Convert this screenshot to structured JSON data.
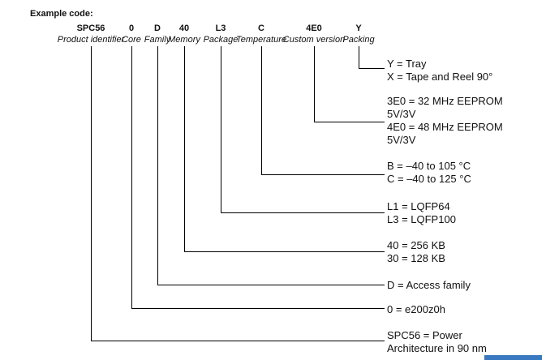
{
  "page": {
    "title": "Example code:"
  },
  "columns": [
    {
      "code": "SPC56",
      "label": "Product identifier"
    },
    {
      "code": "0",
      "label": "Core"
    },
    {
      "code": "D",
      "label": "Family"
    },
    {
      "code": "40",
      "label": "Memory"
    },
    {
      "code": "L3",
      "label": "Package"
    },
    {
      "code": "C",
      "label": "Temperature"
    },
    {
      "code": "4E0",
      "label": "Custom version"
    },
    {
      "code": "Y",
      "label": "Packing"
    }
  ],
  "legend": [
    {
      "for": "Product identifier",
      "lines": [
        "SPC56 = Power",
        "Architecture in 90 nm"
      ]
    },
    {
      "for": "Core",
      "lines": [
        "0 = e200z0h"
      ]
    },
    {
      "for": "Family",
      "lines": [
        "D = Access family"
      ]
    },
    {
      "for": "Memory",
      "lines": [
        "40 = 256 KB",
        "30 = 128 KB"
      ]
    },
    {
      "for": "Package",
      "lines": [
        "L1 = LQFP64",
        "L3 = LQFP100"
      ]
    },
    {
      "for": "Temperature",
      "lines": [
        "B = –40 to 105 °C",
        "C = –40 to 125 °C"
      ]
    },
    {
      "for": "Custom version",
      "lines": [
        "3E0 = 32 MHz EEPROM",
        "5V/3V",
        "4E0 = 48 MHz EEPROM",
        "5V/3V"
      ]
    },
    {
      "for": "Packing",
      "lines": [
        "Y = Tray",
        "X = Tape and Reel 90°"
      ]
    }
  ],
  "colors": {
    "text": "#111111",
    "line": "#000000",
    "footer_bar": "#3879c0"
  }
}
